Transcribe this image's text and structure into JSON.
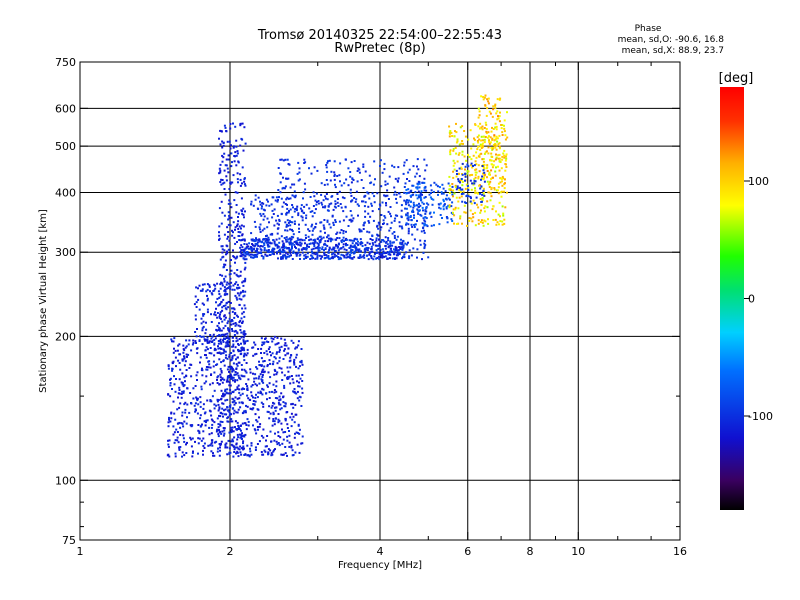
{
  "chart_data": {
    "type": "scatter",
    "title": "Tromsø 20140325 22:54:00–22:55:43",
    "subtitle": "RwPretec (8p)",
    "info": {
      "title": "Phase",
      "line1": "mean, sd,O:  -90.6, 16.8",
      "line2": "mean, sd,X:  88.9, 23.7"
    },
    "xlabel": "Frequency [MHz]",
    "ylabel": "Stationary phase Virtual Height [km]",
    "x_scale": "log",
    "y_scale": "log",
    "xlim": [
      1,
      16
    ],
    "ylim": [
      75,
      750
    ],
    "x_ticks": [
      1,
      2,
      4,
      6,
      8,
      10,
      16
    ],
    "x_tick_labels": [
      "1",
      "2",
      "4",
      "6",
      "8",
      "10",
      "16"
    ],
    "x_minor_ticks": [
      3,
      5,
      7,
      9,
      12,
      14
    ],
    "y_ticks": [
      75,
      100,
      200,
      300,
      400,
      500,
      600,
      750
    ],
    "y_tick_labels": [
      "75",
      "100",
      "200",
      "300",
      "400",
      "500",
      "600",
      "750"
    ],
    "y_minor_ticks": [
      80,
      90,
      150
    ],
    "grid_x": [
      2,
      4,
      6,
      8,
      10
    ],
    "grid_y": [
      100,
      200,
      300,
      400,
      500,
      600
    ],
    "grid": true,
    "colorbar": {
      "label": "[deg]",
      "min": -180,
      "max": 180,
      "ticks": [
        100,
        0,
        -100
      ],
      "tick_labels": [
        "100",
        "0",
        "-100"
      ]
    },
    "series": [
      {
        "color_by": "phase",
        "clusters": [
          {
            "freq": [
              1.5,
              2.8
            ],
            "height": [
              112,
              200
            ],
            "phase": [
              -120,
              -100
            ],
            "count": 900
          },
          {
            "freq": [
              1.7,
              2.15
            ],
            "height": [
              190,
              260
            ],
            "phase": [
              -115,
              -100
            ],
            "count": 180
          },
          {
            "freq": [
              1.9,
              2.15
            ],
            "height": [
              112,
              560
            ],
            "phase": [
              -120,
              -100
            ],
            "count": 500
          },
          {
            "freq": [
              2.1,
              4.5
            ],
            "height": [
              290,
              320
            ],
            "phase": [
              -120,
              -80
            ],
            "count": 500
          },
          {
            "freq": [
              2.2,
              5.0
            ],
            "height": [
              290,
              400
            ],
            "phase": [
              -110,
              -90
            ],
            "count": 600
          },
          {
            "freq": [
              2.5,
              5.0
            ],
            "height": [
              400,
              470
            ],
            "phase": [
              -110,
              -90
            ],
            "count": 150
          },
          {
            "freq": [
              4.5,
              5.6
            ],
            "height": [
              340,
              420
            ],
            "phase": [
              -100,
              -60
            ],
            "count": 150
          },
          {
            "freq": [
              5.5,
              7.2
            ],
            "height": [
              340,
              560
            ],
            "phase": [
              60,
              120
            ],
            "count": 300
          },
          {
            "freq": [
              6.3,
              7.2
            ],
            "height": [
              400,
              640
            ],
            "phase": [
              70,
              130
            ],
            "count": 150
          },
          {
            "freq": [
              5.7,
              6.5
            ],
            "height": [
              380,
              460
            ],
            "phase": [
              -110,
              -90
            ],
            "count": 60
          }
        ]
      }
    ]
  }
}
